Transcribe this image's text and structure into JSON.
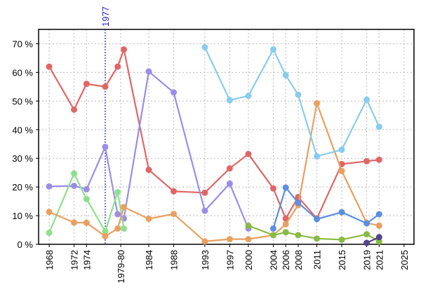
{
  "chart_data": {
    "type": "line",
    "xlim": [
      1966.3,
      2026.6
    ],
    "xticks": [
      1968,
      1972,
      1974,
      {
        "value": 1979.5,
        "label": "1979-80"
      },
      1984,
      1988,
      1993,
      1997,
      2000,
      2004,
      2006,
      2008,
      2011,
      2015,
      2019,
      2021,
      2025
    ],
    "ylim": [
      0,
      75
    ],
    "yticks": [
      {
        "value": 0,
        "label": "0 %"
      },
      {
        "value": 10,
        "label": "10 %"
      },
      {
        "value": 20,
        "label": "20 %"
      },
      {
        "value": 30,
        "label": "30 %"
      },
      {
        "value": 40,
        "label": "40 %"
      },
      {
        "value": 50,
        "label": "50 %"
      },
      {
        "value": 60,
        "label": "60 %"
      },
      {
        "value": 70,
        "label": "70 %"
      }
    ],
    "grid": true,
    "vline": 1977,
    "vline_color": "#2222cc",
    "series": [
      {
        "color": "#e06666",
        "x": [
          1968,
          1972,
          1974,
          1977,
          1979,
          1980,
          1984,
          1988,
          1993,
          1997,
          2000,
          2004,
          2006,
          2008,
          2011,
          2015,
          2019,
          2021
        ],
        "values": [
          62,
          47,
          56,
          55,
          62,
          68,
          26,
          18.5,
          18,
          26.5,
          31.5,
          19.5,
          9,
          16.5,
          9,
          28,
          29,
          29.5
        ]
      },
      {
        "color": "#9b8de8",
        "x": [
          1968,
          1972,
          1974,
          1977,
          1979,
          1980,
          1984,
          1988,
          1993,
          1997,
          2000
        ],
        "values": [
          20.2,
          20.4,
          19.2,
          34,
          10.5,
          9,
          60.3,
          53,
          11.7,
          21.2,
          5.5
        ]
      },
      {
        "color": "#8de08d",
        "x": [
          1968,
          1972,
          1974,
          1977,
          1979,
          1980
        ],
        "values": [
          4,
          24.7,
          15.8,
          4.5,
          18.2,
          5.5
        ]
      },
      {
        "color": "#e8a060",
        "x": [
          1968,
          1972,
          1974,
          1977,
          1979,
          1980,
          1984,
          1988,
          1993,
          1997,
          2000,
          2004,
          2006,
          2008,
          2011,
          2015,
          2019,
          2021
        ],
        "values": [
          11.3,
          7.6,
          7.5,
          2.8,
          5.5,
          13,
          8.9,
          10.6,
          1,
          1.8,
          1.8,
          3.2,
          7,
          13.7,
          49.2,
          25.6,
          7.5,
          6.5
        ]
      },
      {
        "color": "#88ccee",
        "x": [
          1993,
          1997,
          2000,
          2004,
          2006,
          2008,
          2011,
          2015,
          2019,
          2021
        ],
        "values": [
          68.8,
          50.3,
          51.8,
          68,
          59,
          52.2,
          30.7,
          33,
          50.5,
          41
        ]
      },
      {
        "color": "#5b8fe0",
        "x": [
          2004,
          2006,
          2008,
          2011,
          2015,
          2019,
          2021
        ],
        "values": [
          5.5,
          19.8,
          14.5,
          8.8,
          11.2,
          7.3,
          10.5
        ]
      },
      {
        "color": "#88bb44",
        "x": [
          2000,
          2004,
          2006,
          2008,
          2011,
          2015,
          2019,
          2021
        ],
        "values": [
          6.5,
          3.2,
          4.2,
          3.2,
          2,
          1.6,
          3.5,
          1
        ]
      },
      {
        "color": "#554488",
        "x": [
          2019,
          2021
        ],
        "values": [
          0.5,
          2.5
        ]
      }
    ]
  }
}
